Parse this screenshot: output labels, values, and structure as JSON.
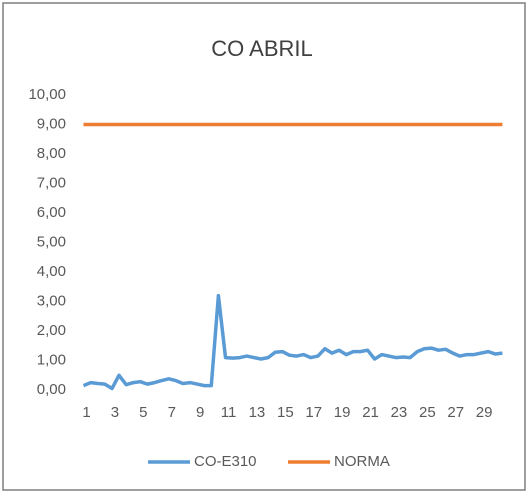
{
  "chart_data": {
    "type": "line",
    "title": "CO ABRIL",
    "categories": [
      "1",
      null,
      null,
      null,
      "3",
      null,
      null,
      null,
      "5",
      null,
      null,
      null,
      "7",
      null,
      null,
      null,
      "9",
      null,
      null,
      null,
      "11",
      null,
      null,
      null,
      "13",
      null,
      null,
      null,
      "15",
      null,
      null,
      null,
      "17",
      null,
      null,
      null,
      "19",
      null,
      null,
      null,
      "21",
      null,
      null,
      null,
      "23",
      null,
      null,
      null,
      "25",
      null,
      null,
      null,
      "27",
      null,
      null,
      null,
      "29",
      null,
      null,
      null
    ],
    "series": [
      {
        "name": "CO-E310",
        "color": "#5b9bd5",
        "values": [
          0.15,
          0.25,
          0.22,
          0.2,
          0.05,
          0.5,
          0.18,
          0.25,
          0.28,
          0.2,
          0.25,
          0.32,
          0.38,
          0.32,
          0.22,
          0.25,
          0.2,
          0.15,
          0.15,
          3.2,
          1.1,
          1.08,
          1.1,
          1.15,
          1.1,
          1.05,
          1.1,
          1.28,
          1.3,
          1.18,
          1.15,
          1.2,
          1.1,
          1.15,
          1.4,
          1.25,
          1.35,
          1.2,
          1.3,
          1.3,
          1.35,
          1.05,
          1.2,
          1.15,
          1.1,
          1.12,
          1.1,
          1.3,
          1.4,
          1.42,
          1.35,
          1.38,
          1.25,
          1.15,
          1.2,
          1.2,
          1.25,
          1.3,
          1.22,
          1.25
        ]
      },
      {
        "name": "NORMA",
        "color": "#ed7d31",
        "values": [
          9,
          9,
          9,
          9,
          9,
          9,
          9,
          9,
          9,
          9,
          9,
          9,
          9,
          9,
          9,
          9,
          9,
          9,
          9,
          9,
          9,
          9,
          9,
          9,
          9,
          9,
          9,
          9,
          9,
          9,
          9,
          9,
          9,
          9,
          9,
          9,
          9,
          9,
          9,
          9,
          9,
          9,
          9,
          9,
          9,
          9,
          9,
          9,
          9,
          9,
          9,
          9,
          9,
          9,
          9,
          9,
          9,
          9,
          9,
          9
        ]
      }
    ],
    "ylim": [
      0,
      10
    ],
    "yticks": [
      {
        "value": 0,
        "label": "0,00"
      },
      {
        "value": 1,
        "label": "1,00"
      },
      {
        "value": 2,
        "label": "2,00"
      },
      {
        "value": 3,
        "label": "3,00"
      },
      {
        "value": 4,
        "label": "4,00"
      },
      {
        "value": 5,
        "label": "5,00"
      },
      {
        "value": 6,
        "label": "6,00"
      },
      {
        "value": 7,
        "label": "7,00"
      },
      {
        "value": 8,
        "label": "8,00"
      },
      {
        "value": 9,
        "label": "9,00"
      },
      {
        "value": 10,
        "label": "10,00"
      }
    ],
    "grid": false,
    "legend": "bottom"
  }
}
